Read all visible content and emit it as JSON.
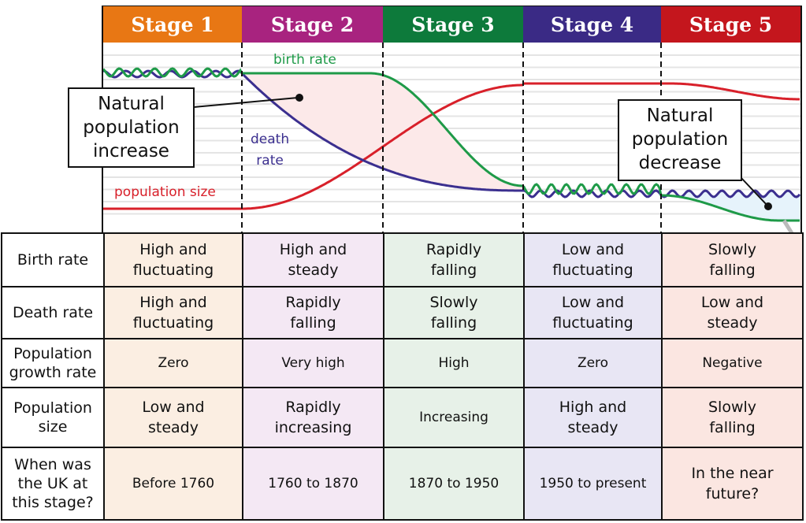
{
  "stages": [
    {
      "label": "Stage 1",
      "color": "#e87714"
    },
    {
      "label": "Stage 2",
      "color": "#a8237f"
    },
    {
      "label": "Stage 3",
      "color": "#0d7a3b"
    },
    {
      "label": "Stage 4",
      "color": "#3a2a85"
    },
    {
      "label": "Stage 5",
      "color": "#c4161d"
    }
  ],
  "graph": {
    "birth_rate_label": "birth rate",
    "death_rate_label": [
      "death",
      "rate"
    ],
    "population_size_label": "population size",
    "increase_callout": [
      "Natural",
      "population",
      "increase"
    ],
    "decrease_callout": [
      "Natural",
      "population",
      "decrease"
    ],
    "birth_color": "#1e9a48",
    "death_color": "#3b2f8f",
    "population_color": "#d8202a",
    "increase_fill": "#fce9e9"
  },
  "table": {
    "rows": [
      {
        "header": [
          "Birth rate"
        ],
        "cells": [
          [
            "High and",
            "fluctuating"
          ],
          [
            "High and",
            "steady"
          ],
          [
            "Rapidly",
            "falling"
          ],
          [
            "Low and",
            "fluctuating"
          ],
          [
            "Slowly",
            "falling"
          ]
        ]
      },
      {
        "header": [
          "Death rate"
        ],
        "cells": [
          [
            "High and",
            "fluctuating"
          ],
          [
            "Rapidly",
            "falling"
          ],
          [
            "Slowly",
            "falling"
          ],
          [
            "Low and",
            "fluctuating"
          ],
          [
            "Low and",
            "steady"
          ]
        ]
      },
      {
        "header": [
          "Population",
          "growth rate"
        ],
        "cells": [
          [
            "Zero"
          ],
          [
            "Very high"
          ],
          [
            "High"
          ],
          [
            "Zero"
          ],
          [
            "Negative"
          ]
        ]
      },
      {
        "header": [
          "Population",
          "size"
        ],
        "cells": [
          [
            "Low and",
            "steady"
          ],
          [
            "Rapidly",
            "increasing"
          ],
          [
            "Increasing"
          ],
          [
            "High and",
            "steady"
          ],
          [
            "Slowly",
            "falling"
          ]
        ]
      },
      {
        "header": [
          "When was",
          "the UK at",
          "this stage?"
        ],
        "cells": [
          [
            "Before 1760"
          ],
          [
            "1760 to 1870"
          ],
          [
            "1870 to 1950"
          ],
          [
            "1950 to present"
          ],
          [
            "In the near",
            "future?"
          ]
        ]
      }
    ]
  }
}
